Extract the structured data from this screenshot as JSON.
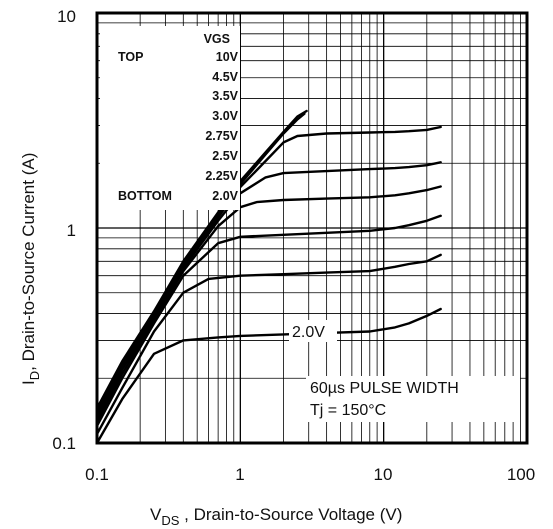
{
  "chart_data": {
    "type": "line",
    "xscale": "log",
    "yscale": "log",
    "xlim": [
      0.1,
      100
    ],
    "ylim": [
      0.1,
      10
    ],
    "grid": true,
    "x_ticks": [
      "0.1",
      "1",
      "10",
      "100"
    ],
    "y_ticks": [
      "0.1",
      "1",
      "10"
    ],
    "xlabel": {
      "main": "V",
      "sub": "DS",
      "rest": " , Drain-to-Source Voltage (V)"
    },
    "ylabel": {
      "main": "I",
      "sub": "D",
      "rest": ",  Drain-to-Source Current (A)"
    },
    "legend": {
      "header": "VGS",
      "top_label": "TOP",
      "bottom_label": "BOTTOM",
      "entries": [
        "10V",
        "4.5V",
        "3.5V",
        "3.0V",
        "2.75V",
        "2.5V",
        "2.25V",
        "2.0V"
      ]
    },
    "curve_annotation": "2.0V",
    "note_lines": [
      "60µs PULSE  WIDTH",
      "Tj = 150°C"
    ],
    "series": [
      {
        "name": "2.0V",
        "x": [
          0.1,
          0.15,
          0.25,
          0.4,
          0.7,
          1,
          2,
          4,
          8,
          12,
          15,
          20,
          25
        ],
        "y": [
          0.1,
          0.16,
          0.26,
          0.3,
          0.31,
          0.315,
          0.32,
          0.325,
          0.33,
          0.345,
          0.36,
          0.39,
          0.42
        ]
      },
      {
        "name": "2.25V",
        "x": [
          0.1,
          0.15,
          0.25,
          0.4,
          0.6,
          1,
          2,
          4,
          8,
          12,
          15,
          20,
          25
        ],
        "y": [
          0.11,
          0.18,
          0.33,
          0.5,
          0.58,
          0.6,
          0.61,
          0.62,
          0.63,
          0.66,
          0.68,
          0.7,
          0.75
        ]
      },
      {
        "name": "2.5V",
        "x": [
          0.1,
          0.15,
          0.25,
          0.4,
          0.7,
          1,
          2,
          4,
          8,
          12,
          15,
          20,
          25
        ],
        "y": [
          0.12,
          0.2,
          0.36,
          0.6,
          0.85,
          0.91,
          0.93,
          0.95,
          0.97,
          1.0,
          1.03,
          1.08,
          1.14
        ]
      },
      {
        "name": "2.75V",
        "x": [
          0.1,
          0.15,
          0.25,
          0.4,
          0.7,
          1,
          1.3,
          2,
          4,
          8,
          12,
          15,
          20,
          25
        ],
        "y": [
          0.125,
          0.21,
          0.37,
          0.63,
          1.02,
          1.25,
          1.32,
          1.35,
          1.37,
          1.39,
          1.42,
          1.45,
          1.5,
          1.56
        ]
      },
      {
        "name": "3.0V",
        "x": [
          0.1,
          0.15,
          0.25,
          0.4,
          0.7,
          1,
          1.5,
          2,
          4,
          8,
          12,
          15,
          20,
          25
        ],
        "y": [
          0.13,
          0.22,
          0.38,
          0.65,
          1.08,
          1.45,
          1.72,
          1.8,
          1.84,
          1.88,
          1.9,
          1.92,
          1.96,
          2.02
        ]
      },
      {
        "name": "3.5V",
        "x": [
          0.1,
          0.15,
          0.25,
          0.4,
          0.7,
          1,
          1.5,
          2,
          2.5,
          4,
          8,
          12,
          15,
          20,
          25
        ],
        "y": [
          0.135,
          0.23,
          0.39,
          0.67,
          1.12,
          1.55,
          2.05,
          2.5,
          2.68,
          2.75,
          2.78,
          2.8,
          2.82,
          2.86,
          2.95
        ]
      },
      {
        "name": "4.5V",
        "x": [
          0.1,
          0.15,
          0.25,
          0.4,
          0.7,
          1,
          1.5,
          2,
          2.5,
          2.8
        ],
        "y": [
          0.14,
          0.23,
          0.4,
          0.68,
          1.15,
          1.6,
          2.2,
          2.75,
          3.2,
          3.4
        ]
      },
      {
        "name": "10V",
        "x": [
          0.1,
          0.15,
          0.25,
          0.4,
          0.7,
          1,
          1.5,
          2,
          2.5,
          2.9
        ],
        "y": [
          0.145,
          0.24,
          0.41,
          0.7,
          1.18,
          1.65,
          2.25,
          2.8,
          3.3,
          3.5
        ]
      }
    ]
  }
}
